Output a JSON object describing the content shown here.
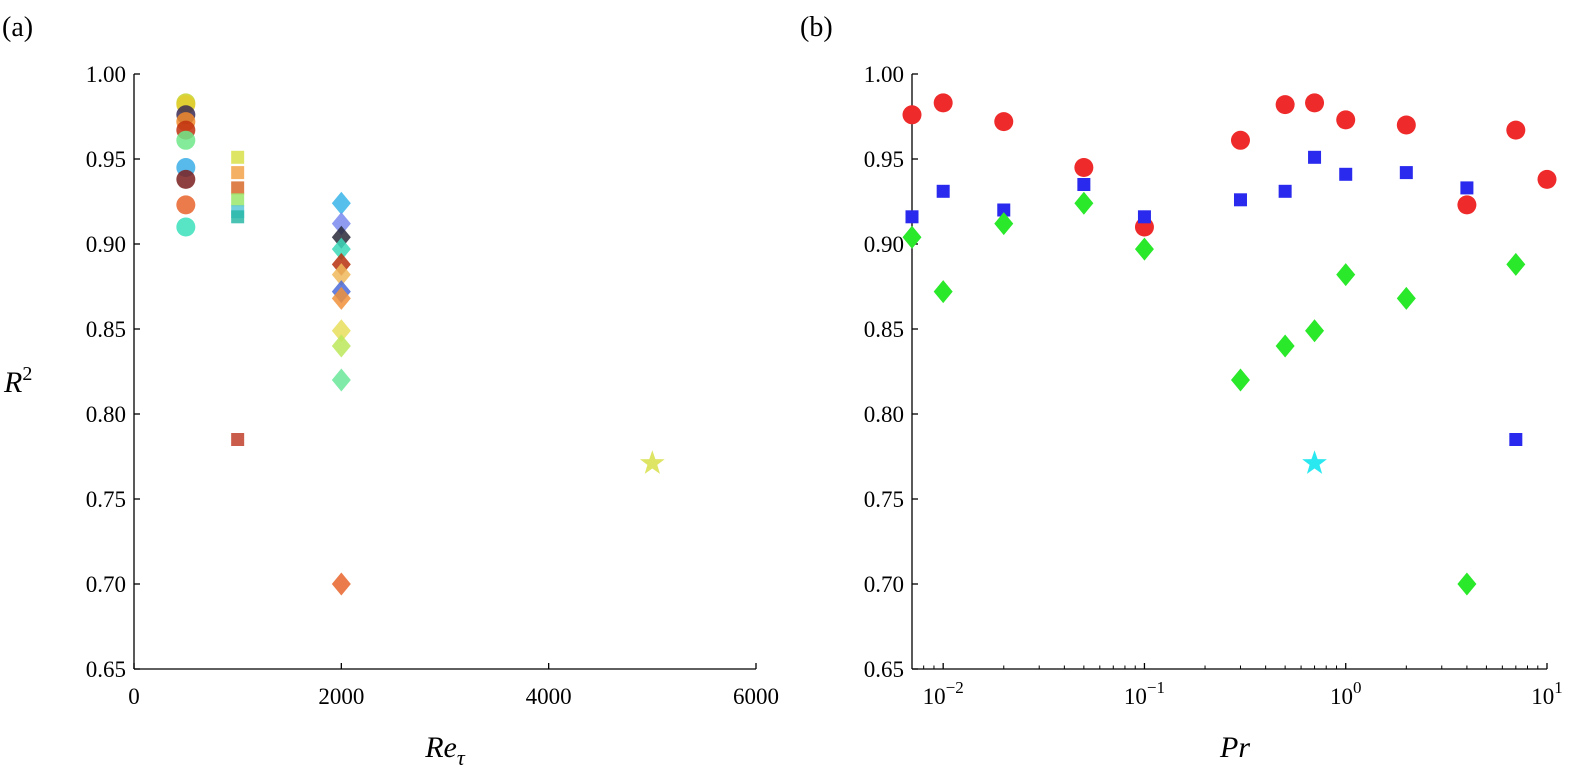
{
  "chart_data": [
    {
      "type": "scatter",
      "panel_label": "(a)",
      "xlabel": "Re",
      "xlabel_sub": "τ",
      "ylabel": "R",
      "ylabel_sup": "2",
      "xlim": [
        0,
        6000
      ],
      "ylim": [
        0.65,
        1.0
      ],
      "x_ticks": [
        0,
        2000,
        4000,
        6000
      ],
      "x_tick_labels": [
        "0",
        "2000",
        "4000",
        "6000"
      ],
      "y_ticks": [
        0.65,
        0.7,
        0.75,
        0.8,
        0.85,
        0.9,
        0.95,
        1.0
      ],
      "y_tick_labels": [
        "0.65",
        "0.70",
        "0.75",
        "0.80",
        "0.85",
        "0.90",
        "0.95",
        "1.00"
      ],
      "grid": false,
      "legend": "none",
      "series": [
        {
          "marker": "circle",
          "points": [
            {
              "x": 500,
              "y": 0.983,
              "color": "#c6d42a"
            },
            {
              "x": 500,
              "y": 0.982,
              "color": "#e2cc2f"
            },
            {
              "x": 500,
              "y": 0.976,
              "color": "#3b2a55"
            },
            {
              "x": 500,
              "y": 0.972,
              "color": "#f08a2c"
            },
            {
              "x": 500,
              "y": 0.967,
              "color": "#c0300e"
            },
            {
              "x": 500,
              "y": 0.961,
              "color": "#6ee88a"
            },
            {
              "x": 500,
              "y": 0.945,
              "color": "#3aaee6"
            },
            {
              "x": 500,
              "y": 0.938,
              "color": "#7a1e1e"
            },
            {
              "x": 500,
              "y": 0.923,
              "color": "#e8642a"
            },
            {
              "x": 500,
              "y": 0.91,
              "color": "#3ae0bc"
            }
          ]
        },
        {
          "marker": "square",
          "points": [
            {
              "x": 1000,
              "y": 0.951,
              "color": "#d8e04a"
            },
            {
              "x": 1000,
              "y": 0.942,
              "color": "#f2a24a"
            },
            {
              "x": 1000,
              "y": 0.933,
              "color": "#d86a2a"
            },
            {
              "x": 1000,
              "y": 0.926,
              "color": "#9ae86a"
            },
            {
              "x": 1000,
              "y": 0.919,
              "color": "#5ac8d8"
            },
            {
              "x": 1000,
              "y": 0.916,
              "color": "#2ab8a8"
            },
            {
              "x": 1000,
              "y": 0.785,
              "color": "#c0402a"
            }
          ]
        },
        {
          "marker": "diamond",
          "points": [
            {
              "x": 2000,
              "y": 0.924,
              "color": "#3ab4e8"
            },
            {
              "x": 2000,
              "y": 0.912,
              "color": "#7a8aee"
            },
            {
              "x": 2000,
              "y": 0.904,
              "color": "#2a2a3a"
            },
            {
              "x": 2000,
              "y": 0.897,
              "color": "#3ad8b8"
            },
            {
              "x": 2000,
              "y": 0.888,
              "color": "#b8300e"
            },
            {
              "x": 2000,
              "y": 0.882,
              "color": "#f0b85a"
            },
            {
              "x": 2000,
              "y": 0.872,
              "color": "#4a6ad8"
            },
            {
              "x": 2000,
              "y": 0.868,
              "color": "#f0903a"
            },
            {
              "x": 2000,
              "y": 0.849,
              "color": "#e8de5a"
            },
            {
              "x": 2000,
              "y": 0.84,
              "color": "#bce85a"
            },
            {
              "x": 2000,
              "y": 0.82,
              "color": "#6ae89a"
            },
            {
              "x": 2000,
              "y": 0.7,
              "color": "#e8642a"
            }
          ]
        },
        {
          "marker": "star",
          "points": [
            {
              "x": 5000,
              "y": 0.771,
              "color": "#d8e04a"
            }
          ]
        }
      ]
    },
    {
      "type": "scatter",
      "panel_label": "(b)",
      "xlabel": "Pr",
      "xscale": "log",
      "xlim": [
        0.007,
        10
      ],
      "ylim": [
        0.65,
        1.0
      ],
      "x_ticks": [
        0.01,
        0.1,
        1,
        10
      ],
      "x_tick_labels": [
        {
          "base": "10",
          "exp": "−2"
        },
        {
          "base": "10",
          "exp": "−1"
        },
        {
          "base": "10",
          "exp": "0"
        },
        {
          "base": "10",
          "exp": "1"
        }
      ],
      "y_ticks": [
        0.65,
        0.7,
        0.75,
        0.8,
        0.85,
        0.9,
        0.95,
        1.0
      ],
      "y_tick_labels": [
        "0.65",
        "0.70",
        "0.75",
        "0.80",
        "0.85",
        "0.90",
        "0.95",
        "1.00"
      ],
      "grid": false,
      "legend": "none",
      "series": [
        {
          "marker": "circle",
          "color": "#ee2a2a",
          "points": [
            {
              "x": 0.007,
              "y": 0.976
            },
            {
              "x": 0.01,
              "y": 0.983
            },
            {
              "x": 0.02,
              "y": 0.972
            },
            {
              "x": 0.05,
              "y": 0.945
            },
            {
              "x": 0.1,
              "y": 0.91
            },
            {
              "x": 0.3,
              "y": 0.961
            },
            {
              "x": 0.5,
              "y": 0.982
            },
            {
              "x": 0.7,
              "y": 0.983
            },
            {
              "x": 1,
              "y": 0.973
            },
            {
              "x": 2,
              "y": 0.97
            },
            {
              "x": 4,
              "y": 0.923
            },
            {
              "x": 7,
              "y": 0.967
            },
            {
              "x": 10,
              "y": 0.938
            }
          ]
        },
        {
          "marker": "square",
          "color": "#2a2aee",
          "points": [
            {
              "x": 0.007,
              "y": 0.916
            },
            {
              "x": 0.01,
              "y": 0.931
            },
            {
              "x": 0.02,
              "y": 0.92
            },
            {
              "x": 0.05,
              "y": 0.935
            },
            {
              "x": 0.1,
              "y": 0.916
            },
            {
              "x": 0.3,
              "y": 0.926
            },
            {
              "x": 0.5,
              "y": 0.931
            },
            {
              "x": 0.7,
              "y": 0.951
            },
            {
              "x": 1,
              "y": 0.941
            },
            {
              "x": 2,
              "y": 0.942
            },
            {
              "x": 4,
              "y": 0.933
            },
            {
              "x": 7,
              "y": 0.785
            }
          ]
        },
        {
          "marker": "diamond",
          "color": "#2ae82a",
          "points": [
            {
              "x": 0.007,
              "y": 0.904
            },
            {
              "x": 0.01,
              "y": 0.872
            },
            {
              "x": 0.02,
              "y": 0.912
            },
            {
              "x": 0.05,
              "y": 0.924
            },
            {
              "x": 0.1,
              "y": 0.897
            },
            {
              "x": 0.3,
              "y": 0.82
            },
            {
              "x": 0.5,
              "y": 0.84
            },
            {
              "x": 0.7,
              "y": 0.849
            },
            {
              "x": 1,
              "y": 0.882
            },
            {
              "x": 2,
              "y": 0.868
            },
            {
              "x": 4,
              "y": 0.7
            },
            {
              "x": 7,
              "y": 0.888
            }
          ]
        },
        {
          "marker": "star",
          "color": "#2ae8f0",
          "points": [
            {
              "x": 0.7,
              "y": 0.771
            }
          ]
        }
      ]
    }
  ]
}
